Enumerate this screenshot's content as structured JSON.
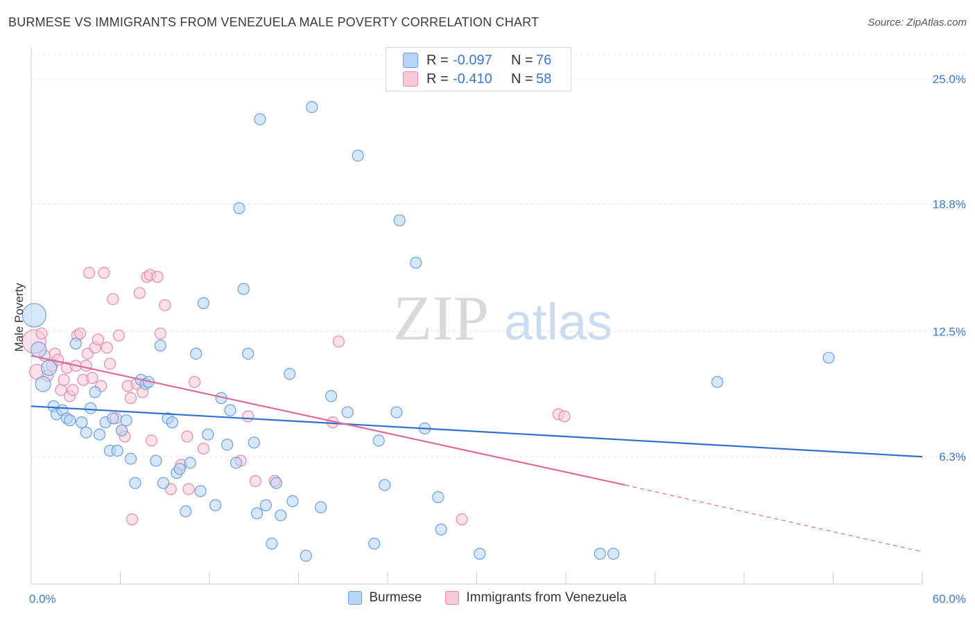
{
  "title": "BURMESE VS IMMIGRANTS FROM VENEZUELA MALE POVERTY CORRELATION CHART",
  "source": "Source: ZipAtlas.com",
  "watermark": {
    "part1": "ZIP",
    "part2": "atlas"
  },
  "legend_top": {
    "rows": [
      {
        "r_label": "R =",
        "r_value": "-0.097",
        "n_label": "N =",
        "n_value": "76"
      },
      {
        "r_label": "R =",
        "r_value": "-0.410",
        "n_label": "N =",
        "n_value": "58"
      }
    ]
  },
  "legend_bottom": {
    "series1": "Burmese",
    "series2": "Immigrants from Venezuela"
  },
  "colors": {
    "blue_fill": "#b7d3f5",
    "blue_stroke": "#6a9fe0",
    "blue_line": "#2f6fce",
    "pink_fill": "#f9c9d8",
    "pink_stroke": "#e68aa9",
    "pink_line": "#e0699a",
    "tick_label": "#3a78d0",
    "grid": "#e3e3e3"
  },
  "chart_data": {
    "type": "scatter",
    "title": "BURMESE VS IMMIGRANTS FROM VENEZUELA MALE POVERTY CORRELATION CHART",
    "xlabel": "",
    "ylabel": "Male Poverty",
    "xlim": [
      0,
      60
    ],
    "ylim": [
      0,
      26.5
    ],
    "x_tick_labels": [
      "0.0%",
      "60.0%"
    ],
    "y_ticks": [
      6.3,
      12.5,
      18.8,
      25.0
    ],
    "y_tick_labels": [
      "6.3%",
      "12.5%",
      "18.8%",
      "25.0%"
    ],
    "grid": "horizontal dashed",
    "legend_position": "top-center",
    "series": [
      {
        "name": "Burmese",
        "r": -0.097,
        "n": 76,
        "trend": {
          "x": [
            0,
            60
          ],
          "y": [
            8.8,
            6.3
          ]
        },
        "points": [
          {
            "x": 0.2,
            "y": 13.3,
            "s": 3
          },
          {
            "x": 0.5,
            "y": 11.6,
            "s": 2
          },
          {
            "x": 0.8,
            "y": 9.9,
            "s": 2
          },
          {
            "x": 1.2,
            "y": 10.7,
            "s": 2
          },
          {
            "x": 1.5,
            "y": 8.8,
            "s": 1
          },
          {
            "x": 1.7,
            "y": 8.4,
            "s": 1
          },
          {
            "x": 2.1,
            "y": 8.6,
            "s": 1
          },
          {
            "x": 2.4,
            "y": 8.2,
            "s": 1
          },
          {
            "x": 2.6,
            "y": 8.1,
            "s": 1
          },
          {
            "x": 3.0,
            "y": 11.9,
            "s": 1
          },
          {
            "x": 3.4,
            "y": 8.0,
            "s": 1
          },
          {
            "x": 3.7,
            "y": 7.5,
            "s": 1
          },
          {
            "x": 4.0,
            "y": 8.7,
            "s": 1
          },
          {
            "x": 4.3,
            "y": 9.5,
            "s": 1
          },
          {
            "x": 4.6,
            "y": 7.4,
            "s": 1
          },
          {
            "x": 5.0,
            "y": 8.0,
            "s": 1
          },
          {
            "x": 5.3,
            "y": 6.6,
            "s": 1
          },
          {
            "x": 5.5,
            "y": 8.2,
            "s": 1
          },
          {
            "x": 5.8,
            "y": 6.6,
            "s": 1
          },
          {
            "x": 6.1,
            "y": 7.6,
            "s": 1
          },
          {
            "x": 6.4,
            "y": 8.1,
            "s": 1
          },
          {
            "x": 6.7,
            "y": 6.2,
            "s": 1
          },
          {
            "x": 7.0,
            "y": 5.0,
            "s": 1
          },
          {
            "x": 7.4,
            "y": 10.1,
            "s": 1
          },
          {
            "x": 7.7,
            "y": 9.9,
            "s": 1
          },
          {
            "x": 7.9,
            "y": 10.0,
            "s": 1
          },
          {
            "x": 8.4,
            "y": 6.1,
            "s": 1
          },
          {
            "x": 8.7,
            "y": 11.8,
            "s": 1
          },
          {
            "x": 8.9,
            "y": 5.0,
            "s": 1
          },
          {
            "x": 9.2,
            "y": 8.2,
            "s": 1
          },
          {
            "x": 9.5,
            "y": 8.0,
            "s": 1
          },
          {
            "x": 9.8,
            "y": 5.5,
            "s": 1
          },
          {
            "x": 10.0,
            "y": 5.7,
            "s": 1
          },
          {
            "x": 10.4,
            "y": 3.6,
            "s": 1
          },
          {
            "x": 10.7,
            "y": 6.0,
            "s": 1
          },
          {
            "x": 11.1,
            "y": 11.4,
            "s": 1
          },
          {
            "x": 11.4,
            "y": 4.6,
            "s": 1
          },
          {
            "x": 11.6,
            "y": 13.9,
            "s": 1
          },
          {
            "x": 11.9,
            "y": 7.4,
            "s": 1
          },
          {
            "x": 12.4,
            "y": 3.9,
            "s": 1
          },
          {
            "x": 12.8,
            "y": 9.2,
            "s": 1
          },
          {
            "x": 13.2,
            "y": 6.9,
            "s": 1
          },
          {
            "x": 13.4,
            "y": 8.6,
            "s": 1
          },
          {
            "x": 13.8,
            "y": 6.0,
            "s": 1
          },
          {
            "x": 14.0,
            "y": 18.6,
            "s": 1
          },
          {
            "x": 14.3,
            "y": 14.6,
            "s": 1
          },
          {
            "x": 14.6,
            "y": 11.4,
            "s": 1
          },
          {
            "x": 15.0,
            "y": 7.0,
            "s": 1
          },
          {
            "x": 15.2,
            "y": 3.5,
            "s": 1
          },
          {
            "x": 15.4,
            "y": 23.0,
            "s": 1
          },
          {
            "x": 15.8,
            "y": 3.9,
            "s": 1
          },
          {
            "x": 16.2,
            "y": 2.0,
            "s": 1
          },
          {
            "x": 16.5,
            "y": 5.0,
            "s": 1
          },
          {
            "x": 16.8,
            "y": 3.4,
            "s": 1
          },
          {
            "x": 17.4,
            "y": 10.4,
            "s": 1
          },
          {
            "x": 17.6,
            "y": 4.1,
            "s": 1
          },
          {
            "x": 18.5,
            "y": 1.4,
            "s": 1
          },
          {
            "x": 18.9,
            "y": 23.6,
            "s": 1
          },
          {
            "x": 19.5,
            "y": 3.8,
            "s": 1
          },
          {
            "x": 20.2,
            "y": 9.3,
            "s": 1
          },
          {
            "x": 21.3,
            "y": 8.5,
            "s": 1
          },
          {
            "x": 22.0,
            "y": 21.2,
            "s": 1
          },
          {
            "x": 23.1,
            "y": 2.0,
            "s": 1
          },
          {
            "x": 23.4,
            "y": 7.1,
            "s": 1
          },
          {
            "x": 23.8,
            "y": 4.9,
            "s": 1
          },
          {
            "x": 24.6,
            "y": 8.5,
            "s": 1
          },
          {
            "x": 24.8,
            "y": 18.0,
            "s": 1
          },
          {
            "x": 25.9,
            "y": 15.9,
            "s": 1
          },
          {
            "x": 26.5,
            "y": 7.7,
            "s": 1
          },
          {
            "x": 27.4,
            "y": 4.3,
            "s": 1
          },
          {
            "x": 27.6,
            "y": 2.7,
            "s": 1
          },
          {
            "x": 30.2,
            "y": 1.5,
            "s": 1
          },
          {
            "x": 38.3,
            "y": 1.5,
            "s": 1
          },
          {
            "x": 39.2,
            "y": 1.5,
            "s": 1
          },
          {
            "x": 46.2,
            "y": 10.0,
            "s": 1
          },
          {
            "x": 53.7,
            "y": 11.2,
            "s": 1
          }
        ]
      },
      {
        "name": "Immigrants from Venezuela",
        "r": -0.41,
        "n": 58,
        "trend": {
          "x": [
            0,
            40
          ],
          "y": [
            11.3,
            4.9
          ]
        },
        "trend_extension": {
          "x": [
            40,
            60
          ],
          "y": [
            4.9,
            1.6
          ]
        },
        "points": [
          {
            "x": 0.2,
            "y": 12.0,
            "s": 3
          },
          {
            "x": 0.4,
            "y": 10.5,
            "s": 2
          },
          {
            "x": 0.7,
            "y": 12.4,
            "s": 1
          },
          {
            "x": 0.9,
            "y": 11.3,
            "s": 1
          },
          {
            "x": 1.1,
            "y": 10.3,
            "s": 1
          },
          {
            "x": 1.4,
            "y": 10.8,
            "s": 1
          },
          {
            "x": 1.6,
            "y": 11.4,
            "s": 1
          },
          {
            "x": 1.8,
            "y": 11.1,
            "s": 1
          },
          {
            "x": 2.0,
            "y": 9.6,
            "s": 1
          },
          {
            "x": 2.2,
            "y": 10.1,
            "s": 1
          },
          {
            "x": 2.4,
            "y": 10.7,
            "s": 1
          },
          {
            "x": 2.6,
            "y": 9.3,
            "s": 1
          },
          {
            "x": 2.8,
            "y": 9.6,
            "s": 1
          },
          {
            "x": 3.0,
            "y": 10.8,
            "s": 1
          },
          {
            "x": 3.1,
            "y": 12.3,
            "s": 1
          },
          {
            "x": 3.3,
            "y": 12.4,
            "s": 1
          },
          {
            "x": 3.5,
            "y": 10.1,
            "s": 1
          },
          {
            "x": 3.7,
            "y": 10.8,
            "s": 1
          },
          {
            "x": 3.8,
            "y": 11.4,
            "s": 1
          },
          {
            "x": 3.9,
            "y": 15.4,
            "s": 1
          },
          {
            "x": 4.1,
            "y": 10.2,
            "s": 1
          },
          {
            "x": 4.3,
            "y": 11.7,
            "s": 1
          },
          {
            "x": 4.5,
            "y": 12.1,
            "s": 1
          },
          {
            "x": 4.7,
            "y": 9.8,
            "s": 1
          },
          {
            "x": 4.9,
            "y": 15.4,
            "s": 1
          },
          {
            "x": 5.1,
            "y": 11.7,
            "s": 1
          },
          {
            "x": 5.3,
            "y": 10.9,
            "s": 1
          },
          {
            "x": 5.5,
            "y": 14.1,
            "s": 1
          },
          {
            "x": 5.7,
            "y": 8.2,
            "s": 1
          },
          {
            "x": 5.9,
            "y": 12.3,
            "s": 1
          },
          {
            "x": 6.1,
            "y": 7.6,
            "s": 1
          },
          {
            "x": 6.3,
            "y": 7.3,
            "s": 1
          },
          {
            "x": 6.5,
            "y": 9.8,
            "s": 1
          },
          {
            "x": 6.7,
            "y": 9.2,
            "s": 1
          },
          {
            "x": 6.8,
            "y": 3.2,
            "s": 1
          },
          {
            "x": 7.1,
            "y": 9.9,
            "s": 1
          },
          {
            "x": 7.3,
            "y": 14.4,
            "s": 1
          },
          {
            "x": 7.5,
            "y": 9.5,
            "s": 1
          },
          {
            "x": 7.8,
            "y": 15.2,
            "s": 1
          },
          {
            "x": 8.0,
            "y": 15.3,
            "s": 1
          },
          {
            "x": 8.1,
            "y": 7.1,
            "s": 1
          },
          {
            "x": 8.5,
            "y": 15.2,
            "s": 1
          },
          {
            "x": 8.7,
            "y": 12.4,
            "s": 1
          },
          {
            "x": 9.0,
            "y": 13.8,
            "s": 1
          },
          {
            "x": 9.4,
            "y": 4.7,
            "s": 1
          },
          {
            "x": 10.1,
            "y": 5.9,
            "s": 1
          },
          {
            "x": 10.5,
            "y": 7.3,
            "s": 1
          },
          {
            "x": 10.6,
            "y": 4.7,
            "s": 1
          },
          {
            "x": 11.0,
            "y": 10.0,
            "s": 1
          },
          {
            "x": 11.6,
            "y": 6.7,
            "s": 1
          },
          {
            "x": 14.1,
            "y": 6.1,
            "s": 1
          },
          {
            "x": 14.6,
            "y": 8.3,
            "s": 1
          },
          {
            "x": 15.1,
            "y": 5.1,
            "s": 1
          },
          {
            "x": 16.4,
            "y": 5.1,
            "s": 1
          },
          {
            "x": 20.3,
            "y": 8.0,
            "s": 1
          },
          {
            "x": 20.7,
            "y": 12.0,
            "s": 1
          },
          {
            "x": 29.0,
            "y": 3.2,
            "s": 1
          },
          {
            "x": 35.5,
            "y": 8.4,
            "s": 1
          },
          {
            "x": 35.9,
            "y": 8.3,
            "s": 1
          }
        ]
      }
    ]
  }
}
